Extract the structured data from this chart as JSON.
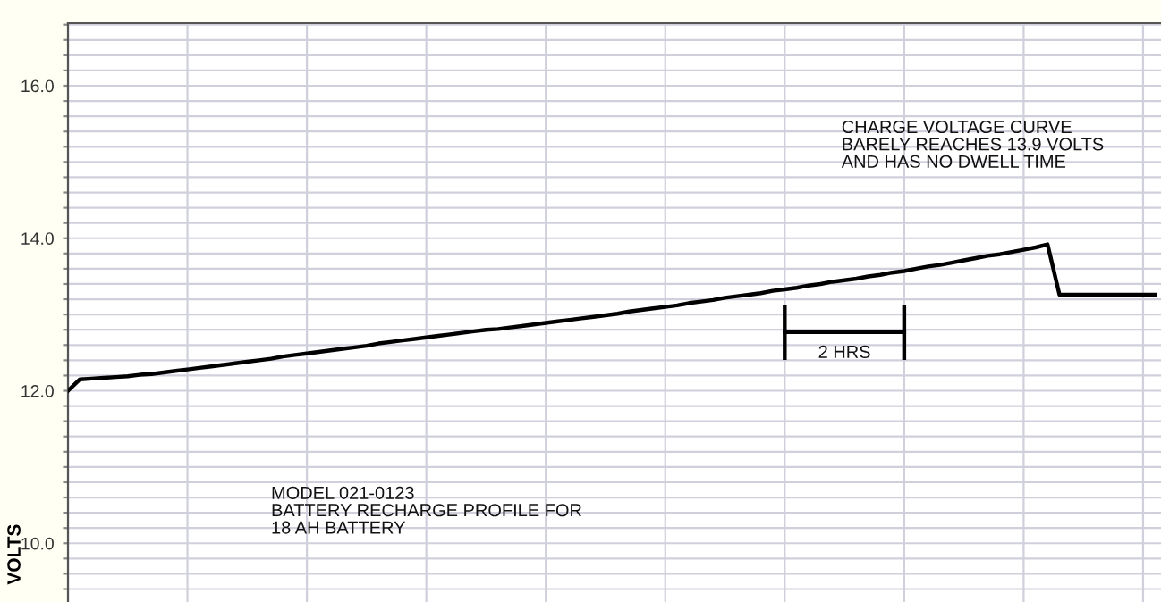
{
  "chart_data": {
    "type": "line",
    "ylabel": "VOLTS",
    "annotations": [
      "CHARGE VOLTAGE CURVE\nBARELY REACHES 13.9 VOLTS\nAND HAS NO DWELL TIME",
      "MODEL 021-0123\nBATTERY RECHARGE PROFILE FOR\n18 AH BATTERY",
      "2 HRS"
    ],
    "categories": [
      null,
      null,
      null,
      null,
      null,
      null,
      null,
      null,
      null,
      null,
      null,
      null,
      null,
      null,
      null,
      null,
      null,
      null,
      null,
      null,
      null,
      null,
      null,
      null,
      null,
      null,
      null,
      null,
      null,
      null,
      null,
      null,
      null,
      null,
      null,
      null,
      null,
      null,
      null,
      null,
      null,
      null,
      null,
      null,
      null,
      null,
      null,
      null,
      null,
      null,
      null,
      null,
      null,
      null,
      null,
      null,
      null,
      null,
      null,
      null,
      null,
      null,
      null,
      null,
      null,
      null,
      null,
      null,
      null,
      null,
      null,
      null,
      null,
      null,
      null,
      null,
      null,
      null,
      null,
      null,
      null,
      null,
      null,
      null,
      null,
      null,
      null,
      null,
      null,
      null,
      null,
      null
    ],
    "series": [
      {
        "color": "#000000",
        "values": [
          12.0,
          12.15,
          12.16,
          12.17,
          12.18,
          12.19,
          12.21,
          12.22,
          12.24,
          12.26,
          12.28,
          12.3,
          12.32,
          12.34,
          12.36,
          12.38,
          12.4,
          12.42,
          12.45,
          12.47,
          12.49,
          12.51,
          12.53,
          12.55,
          12.57,
          12.59,
          12.62,
          12.64,
          12.66,
          12.68,
          12.7,
          12.72,
          12.74,
          12.76,
          12.78,
          12.8,
          12.81,
          12.83,
          12.85,
          12.87,
          12.89,
          12.91,
          12.93,
          12.95,
          12.97,
          12.99,
          13.01,
          13.04,
          13.06,
          13.08,
          13.1,
          13.12,
          13.15,
          13.17,
          13.19,
          13.22,
          13.24,
          13.26,
          13.28,
          13.31,
          13.33,
          13.35,
          13.38,
          13.4,
          13.43,
          13.45,
          13.47,
          13.5,
          13.52,
          13.55,
          13.57,
          13.6,
          13.63,
          13.65,
          13.68,
          13.71,
          13.74,
          13.77,
          13.79,
          13.82,
          13.85,
          13.88,
          13.92,
          13.26,
          13.26,
          13.26,
          13.26,
          13.26,
          13.26,
          13.26,
          13.26,
          13.26
        ]
      }
    ],
    "ylim": [
      9.23,
      16.82
    ],
    "yticks": [
      {
        "value": 9.4,
        "label": null
      },
      {
        "value": 9.6,
        "label": null
      },
      {
        "value": 9.8,
        "label": null
      },
      {
        "value": 10.0,
        "label": "10.0"
      },
      {
        "value": 10.2,
        "label": null
      },
      {
        "value": 10.4,
        "label": null
      },
      {
        "value": 10.6,
        "label": null
      },
      {
        "value": 10.8,
        "label": null
      },
      {
        "value": 11.0,
        "label": null
      },
      {
        "value": 11.2,
        "label": null
      },
      {
        "value": 11.4,
        "label": null
      },
      {
        "value": 11.6,
        "label": null
      },
      {
        "value": 11.8,
        "label": null
      },
      {
        "value": 12.0,
        "label": "12.0"
      },
      {
        "value": 12.2,
        "label": null
      },
      {
        "value": 12.4,
        "label": null
      },
      {
        "value": 12.6,
        "label": null
      },
      {
        "value": 12.8,
        "label": null
      },
      {
        "value": 13.0,
        "label": null
      },
      {
        "value": 13.2,
        "label": null
      },
      {
        "value": 13.4,
        "label": null
      },
      {
        "value": 13.6,
        "label": null
      },
      {
        "value": 13.8,
        "label": null
      },
      {
        "value": 14.0,
        "label": "14.0"
      },
      {
        "value": 14.2,
        "label": null
      },
      {
        "value": 14.4,
        "label": null
      },
      {
        "value": 14.6,
        "label": null
      },
      {
        "value": 14.8,
        "label": null
      },
      {
        "value": 15.0,
        "label": null
      },
      {
        "value": 15.2,
        "label": null
      },
      {
        "value": 15.4,
        "label": null
      },
      {
        "value": 15.6,
        "label": null
      },
      {
        "value": 15.8,
        "label": null
      },
      {
        "value": 16.0,
        "label": "16.0"
      },
      {
        "value": 16.2,
        "label": null
      },
      {
        "value": 16.4,
        "label": null
      },
      {
        "value": 16.6,
        "label": null
      },
      {
        "value": 16.8,
        "label": null
      }
    ],
    "tick_labels": "y",
    "grid": true,
    "marker": "none",
    "line_style": "solid"
  }
}
